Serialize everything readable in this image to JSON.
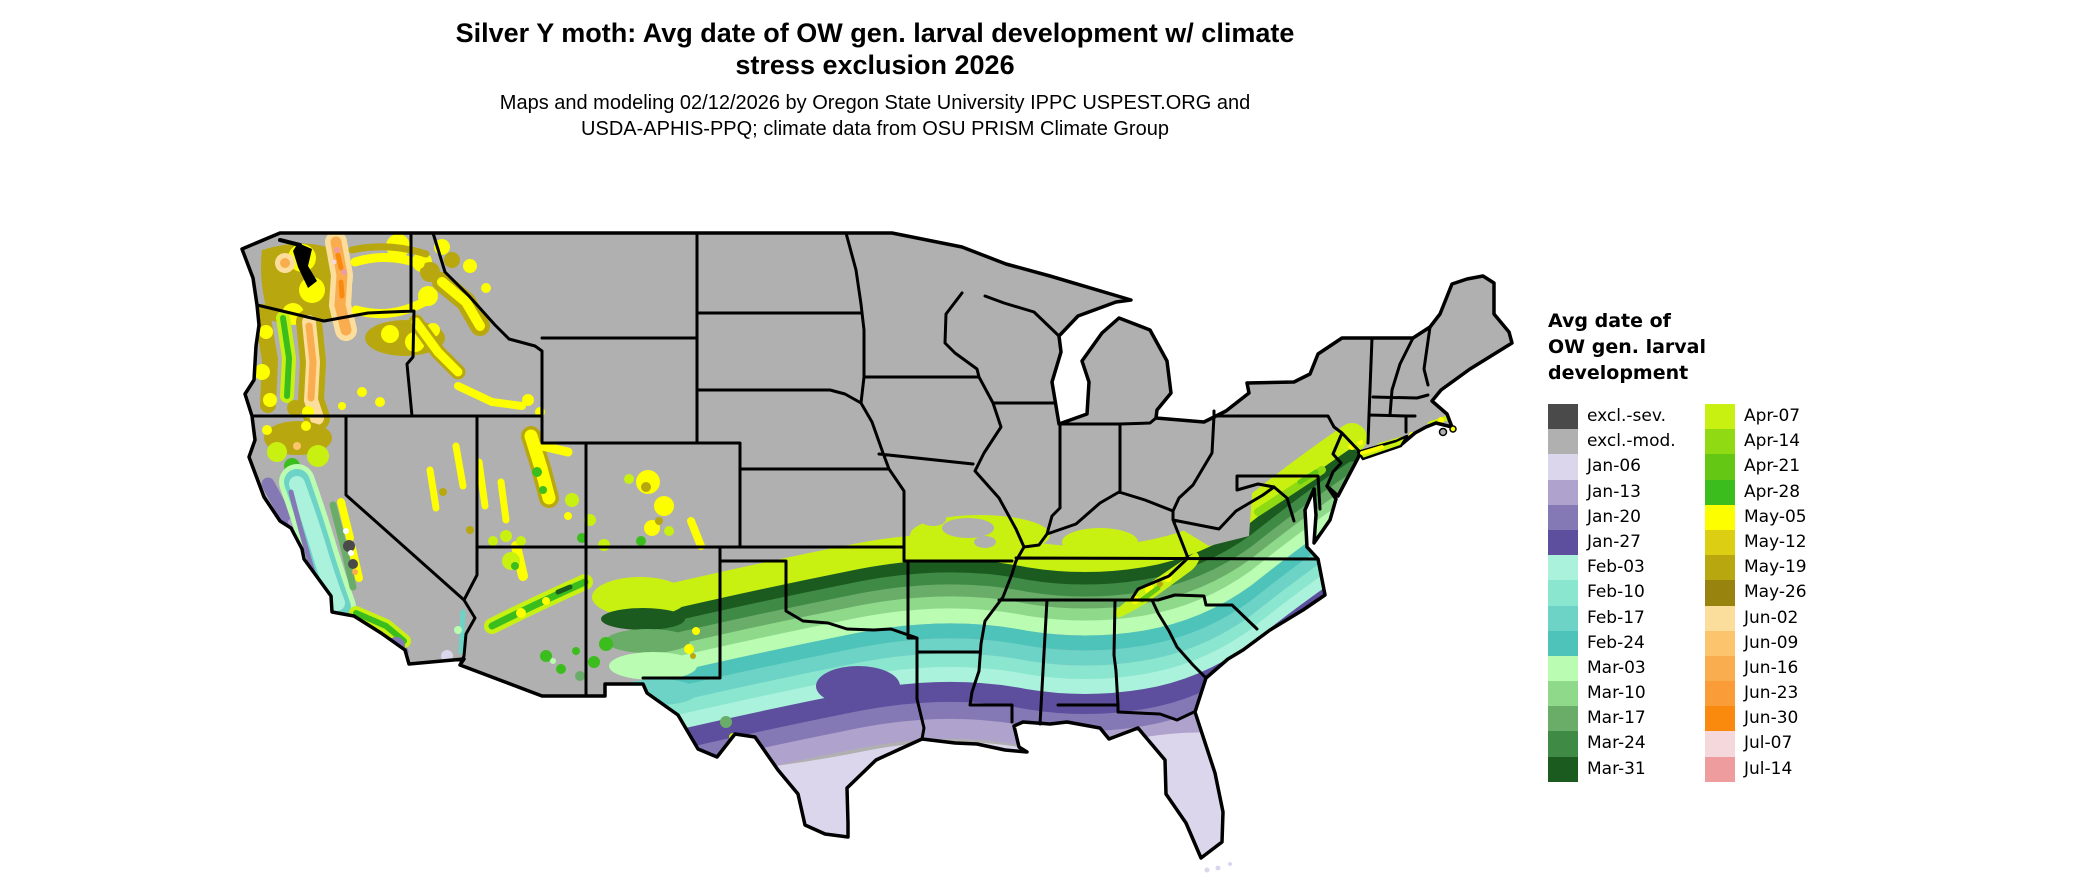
{
  "title": {
    "line1": "Silver Y moth: Avg date of OW gen. larval development w/ climate",
    "line2": "stress exclusion 2026"
  },
  "subtitle": {
    "line1": "Maps and modeling 02/12/2026 by Oregon State University IPPC USPEST.ORG and",
    "line2": "USDA-APHIS-PPQ; climate data from OSU PRISM Climate Group"
  },
  "legend": {
    "title": "Avg date of\nOW gen. larval\ndevelopment",
    "columns": [
      [
        {
          "key": "excl-sev",
          "label": "excl.-sev.",
          "color": "#4A4A4A"
        },
        {
          "key": "excl-mod",
          "label": "excl.-mod.",
          "color": "#B0B0B0"
        },
        {
          "key": "jan-06",
          "label": "Jan-06",
          "color": "#DCD6EC"
        },
        {
          "key": "jan-13",
          "label": "Jan-13",
          "color": "#AFA3CD"
        },
        {
          "key": "jan-20",
          "label": "Jan-20",
          "color": "#8579B5"
        },
        {
          "key": "jan-27",
          "label": "Jan-27",
          "color": "#5D4F9E"
        },
        {
          "key": "feb-03",
          "label": "Feb-03",
          "color": "#AAF2DC"
        },
        {
          "key": "feb-10",
          "label": "Feb-10",
          "color": "#8AE6CE"
        },
        {
          "key": "feb-17",
          "label": "Feb-17",
          "color": "#6DD3C6"
        },
        {
          "key": "feb-24",
          "label": "Feb-24",
          "color": "#4EC3B9"
        },
        {
          "key": "mar-03",
          "label": "Mar-03",
          "color": "#B9FCB2"
        },
        {
          "key": "mar-10",
          "label": "Mar-10",
          "color": "#8FD98A"
        },
        {
          "key": "mar-17",
          "label": "Mar-17",
          "color": "#69AD69"
        },
        {
          "key": "mar-24",
          "label": "Mar-24",
          "color": "#3F8A44"
        },
        {
          "key": "mar-31",
          "label": "Mar-31",
          "color": "#1C5B20"
        }
      ],
      [
        {
          "key": "apr-07",
          "label": "Apr-07",
          "color": "#C8F112"
        },
        {
          "key": "apr-14",
          "label": "Apr-14",
          "color": "#90DA14"
        },
        {
          "key": "apr-21",
          "label": "Apr-21",
          "color": "#63C714"
        },
        {
          "key": "apr-28",
          "label": "Apr-28",
          "color": "#3BBD1D"
        },
        {
          "key": "may-05",
          "label": "May-05",
          "color": "#FDFE00"
        },
        {
          "key": "may-12",
          "label": "May-12",
          "color": "#DCCE12"
        },
        {
          "key": "may-19",
          "label": "May-19",
          "color": "#B8A70E"
        },
        {
          "key": "may-26",
          "label": "May-26",
          "color": "#99830F"
        },
        {
          "key": "jun-02",
          "label": "Jun-02",
          "color": "#FBDD9C"
        },
        {
          "key": "jun-09",
          "label": "Jun-09",
          "color": "#FBC46D"
        },
        {
          "key": "jun-16",
          "label": "Jun-16",
          "color": "#FAAD4F"
        },
        {
          "key": "jun-23",
          "label": "Jun-23",
          "color": "#FA9D38"
        },
        {
          "key": "jun-30",
          "label": "Jun-30",
          "color": "#F98A0D"
        },
        {
          "key": "jul-07",
          "label": "Jul-07",
          "color": "#F5D8DB"
        },
        {
          "key": "jul-14",
          "label": "Jul-14",
          "color": "#EF9C9F"
        }
      ]
    ]
  },
  "map": {
    "border_color": "#000000",
    "water_color": "#FFFFFF",
    "base_fill": "#B0B0B0"
  }
}
